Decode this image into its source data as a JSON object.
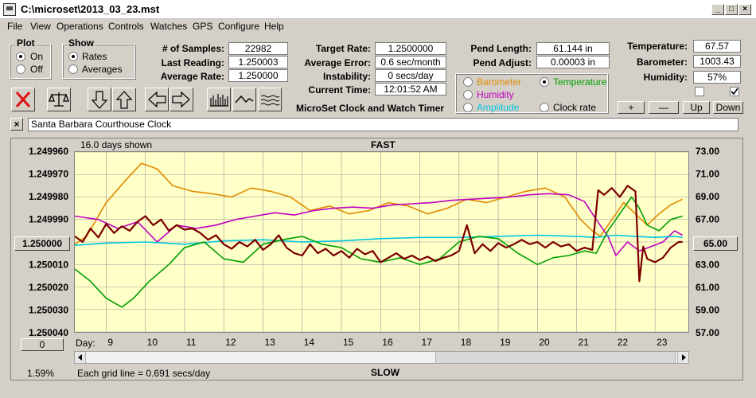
{
  "window": {
    "title": "C:\\microset\\2013_03_23.mst"
  },
  "menu": [
    "File",
    "View",
    "Operations",
    "Controls",
    "Watches",
    "GPS",
    "Configure",
    "Help"
  ],
  "plot_group": {
    "label": "Plot",
    "options": [
      "On",
      "Off"
    ],
    "selected": "On"
  },
  "show_group": {
    "label": "Show",
    "options": [
      "Rates",
      "Averages"
    ],
    "selected": "Rates"
  },
  "stats": {
    "samples_label": "# of Samples:",
    "samples": "22982",
    "last_reading_label": "Last Reading:",
    "last_reading": "1.250003",
    "average_rate_label": "Average Rate:",
    "average_rate": "1.250000"
  },
  "targets": {
    "target_rate_label": "Target Rate:",
    "target_rate": "1.2500000",
    "average_error_label": "Average Error:",
    "average_error": "0.6 sec/month",
    "instability_label": "Instability:",
    "instability": "0 secs/day",
    "current_time_label": "Current Time:",
    "current_time": "12:01:52 AM"
  },
  "app_name": "MicroSet Clock and Watch Timer",
  "pendulum": {
    "length_label": "Pend Length:",
    "length": "61.144 in",
    "adjust_label": "Pend Adjust:",
    "adjust": "0.00003 in"
  },
  "sensor_select": {
    "options": [
      {
        "label": "Barometer",
        "color": "#e08a00",
        "selected": false
      },
      {
        "label": "Temperature",
        "color": "#00a000",
        "selected": true
      },
      {
        "label": "Humidity",
        "color": "#c000c0",
        "selected": false
      },
      {
        "label": "Clock rate",
        "color": "#000000",
        "selected": false
      },
      {
        "label": "Amplitude",
        "color": "#00c8e0",
        "selected": false
      }
    ]
  },
  "environment": {
    "temperature_label": "Temperature:",
    "temperature": "67.57",
    "barometer_label": "Barometer:",
    "barometer": "1003.43",
    "humidity_label": "Humidity:",
    "humidity": "57%",
    "checkbox_left": false,
    "checkbox_right": true
  },
  "adjust_buttons": {
    "plus": "+",
    "minus": "—",
    "up": "Up",
    "down": "Down"
  },
  "watch_name": "Santa Barbara Courthouse Clock",
  "close_icon_text": "×",
  "chart_data": {
    "type": "line",
    "days_shown": "16.0 days shown",
    "top_label": "FAST",
    "bottom_label": "SLOW",
    "grid_note": "Each grid line = 0.691 secs/day",
    "percent": "1.59%",
    "x_prefix": "Day:",
    "x_ticks": [
      "9",
      "10",
      "11",
      "12",
      "13",
      "14",
      "15",
      "16",
      "17",
      "18",
      "19",
      "20",
      "21",
      "22",
      "23"
    ],
    "xlim": [
      8.2,
      23.85
    ],
    "y_left_ticks": [
      "1.249960",
      "1.249970",
      "1.249980",
      "1.249990",
      "1.250000",
      "1.250010",
      "1.250020",
      "1.250030",
      "1.250040"
    ],
    "y_left_center": "1.250000",
    "ylim_left": [
      1.24996,
      1.25004
    ],
    "y_right_ticks": [
      "73.00",
      "71.00",
      "69.00",
      "67.00",
      "65.00",
      "63.00",
      "61.00",
      "59.00",
      "57.00"
    ],
    "y_right_center": "65.00",
    "ylim_right": [
      57,
      73
    ],
    "bottom_left_value": "0",
    "series": [
      {
        "name": "Barometer",
        "color": "#e08a00",
        "x": [
          8.2,
          8.5,
          9.0,
          9.5,
          9.9,
          10.3,
          10.7,
          11.2,
          11.7,
          12.2,
          12.7,
          13.2,
          13.7,
          14.2,
          14.7,
          15.2,
          15.7,
          16.2,
          16.7,
          17.2,
          17.7,
          18.2,
          18.7,
          19.2,
          19.7,
          20.2,
          20.7,
          21.1,
          21.4,
          21.6,
          21.9,
          22.2,
          22.5,
          22.8,
          23.1,
          23.4,
          23.7
        ],
        "y": [
          64.8,
          65.5,
          68.5,
          70.5,
          72.0,
          71.5,
          70.0,
          69.5,
          69.3,
          69.0,
          69.8,
          69.5,
          69.0,
          67.8,
          68.2,
          67.5,
          67.8,
          68.5,
          68.2,
          67.5,
          68.0,
          68.8,
          68.5,
          69.0,
          69.5,
          69.8,
          69.0,
          67.0,
          66.0,
          65.5,
          67.0,
          68.5,
          67.5,
          66.5,
          67.5,
          68.3,
          68.8
        ]
      },
      {
        "name": "Humidity",
        "color": "#c000c0",
        "x": [
          8.2,
          8.8,
          9.3,
          9.8,
          10.3,
          10.8,
          11.3,
          11.8,
          12.3,
          12.8,
          13.3,
          13.8,
          14.3,
          14.8,
          15.3,
          15.8,
          16.3,
          16.8,
          17.3,
          17.8,
          18.3,
          18.8,
          19.3,
          19.8,
          20.3,
          20.8,
          21.2,
          21.5,
          21.8,
          22.0,
          22.3,
          22.6,
          22.9,
          23.2,
          23.5,
          23.7
        ],
        "y": [
          67.3,
          67.0,
          66.2,
          66.8,
          65.0,
          66.5,
          66.2,
          66.5,
          67.0,
          67.3,
          67.6,
          67.4,
          67.8,
          68.0,
          68.1,
          68.0,
          68.3,
          68.4,
          68.5,
          68.7,
          68.8,
          68.9,
          69.0,
          69.2,
          69.3,
          69.2,
          68.6,
          67.0,
          65.5,
          63.8,
          65.0,
          64.2,
          64.6,
          65.0,
          66.0,
          65.6
        ]
      },
      {
        "name": "Amplitude",
        "color": "#00c8e0",
        "x": [
          8.2,
          9.0,
          10.0,
          11.0,
          12.0,
          13.0,
          14.0,
          15.0,
          16.0,
          17.0,
          18.0,
          19.0,
          20.0,
          21.0,
          21.5,
          22.0,
          22.5,
          23.0,
          23.5,
          23.7
        ],
        "y": [
          64.7,
          64.9,
          65.0,
          64.8,
          65.1,
          65.2,
          65.0,
          65.1,
          65.3,
          65.4,
          65.4,
          65.5,
          65.6,
          65.5,
          65.4,
          65.6,
          65.5,
          65.4,
          65.5,
          65.4
        ]
      },
      {
        "name": "Temperature",
        "color": "#00a000",
        "x": [
          8.2,
          8.6,
          9.0,
          9.4,
          9.7,
          10.1,
          10.6,
          11.0,
          11.5,
          12.0,
          12.5,
          13.0,
          13.5,
          14.0,
          14.5,
          15.0,
          15.5,
          16.0,
          16.5,
          17.0,
          17.5,
          18.0,
          18.5,
          19.0,
          19.5,
          20.0,
          20.4,
          20.8,
          21.2,
          21.5,
          21.8,
          22.1,
          22.4,
          22.6,
          22.8,
          23.1,
          23.4,
          23.7
        ],
        "y": [
          62.6,
          61.5,
          60.0,
          59.2,
          60.0,
          61.5,
          63.0,
          64.5,
          65.0,
          63.5,
          63.2,
          64.8,
          65.2,
          65.5,
          64.8,
          64.5,
          63.5,
          63.2,
          63.6,
          63.0,
          63.5,
          65.0,
          65.5,
          65.3,
          64.0,
          63.0,
          63.6,
          63.8,
          64.2,
          64.0,
          66.0,
          67.5,
          69.0,
          68.0,
          66.5,
          66.0,
          67.0,
          67.3
        ]
      },
      {
        "name": "Clock rate",
        "color": "#7a0000",
        "x": [
          8.2,
          8.4,
          8.6,
          8.8,
          9.0,
          9.2,
          9.4,
          9.6,
          9.8,
          10.0,
          10.2,
          10.4,
          10.6,
          10.8,
          11.0,
          11.2,
          11.4,
          11.6,
          11.8,
          12.0,
          12.2,
          12.4,
          12.6,
          12.8,
          13.0,
          13.2,
          13.4,
          13.6,
          13.8,
          14.0,
          14.2,
          14.4,
          14.6,
          14.8,
          15.0,
          15.2,
          15.4,
          15.6,
          15.8,
          16.0,
          16.2,
          16.4,
          16.6,
          16.8,
          17.0,
          17.2,
          17.4,
          17.6,
          17.8,
          18.0,
          18.2,
          18.4,
          18.6,
          18.8,
          19.0,
          19.2,
          19.4,
          19.6,
          19.8,
          20.0,
          20.2,
          20.4,
          20.6,
          20.8,
          21.0,
          21.2,
          21.4,
          21.55,
          21.7,
          21.9,
          22.1,
          22.3,
          22.5,
          22.6,
          22.7,
          22.8,
          23.0,
          23.2,
          23.4,
          23.6,
          23.7
        ],
        "y": [
          65.5,
          65.0,
          66.2,
          65.4,
          66.6,
          65.8,
          66.4,
          66.0,
          66.8,
          67.3,
          66.5,
          67.0,
          66.0,
          66.5,
          66.1,
          66.2,
          65.8,
          65.2,
          65.6,
          64.8,
          64.4,
          65.0,
          64.6,
          65.2,
          64.3,
          64.8,
          65.6,
          64.5,
          64.0,
          63.8,
          64.8,
          64.0,
          64.4,
          63.8,
          64.2,
          63.6,
          64.4,
          63.9,
          64.2,
          63.2,
          63.6,
          64.0,
          63.5,
          63.8,
          63.4,
          63.7,
          63.3,
          63.6,
          63.8,
          64.2,
          66.5,
          64.0,
          64.8,
          64.2,
          64.9,
          64.5,
          64.8,
          65.2,
          64.8,
          65.0,
          64.5,
          65.0,
          64.6,
          64.8,
          64.2,
          64.5,
          64.3,
          69.6,
          69.2,
          69.8,
          69.0,
          70.0,
          69.5,
          61.5,
          64.6,
          63.5,
          63.2,
          63.6,
          64.5,
          65.0,
          65.0
        ]
      }
    ]
  }
}
